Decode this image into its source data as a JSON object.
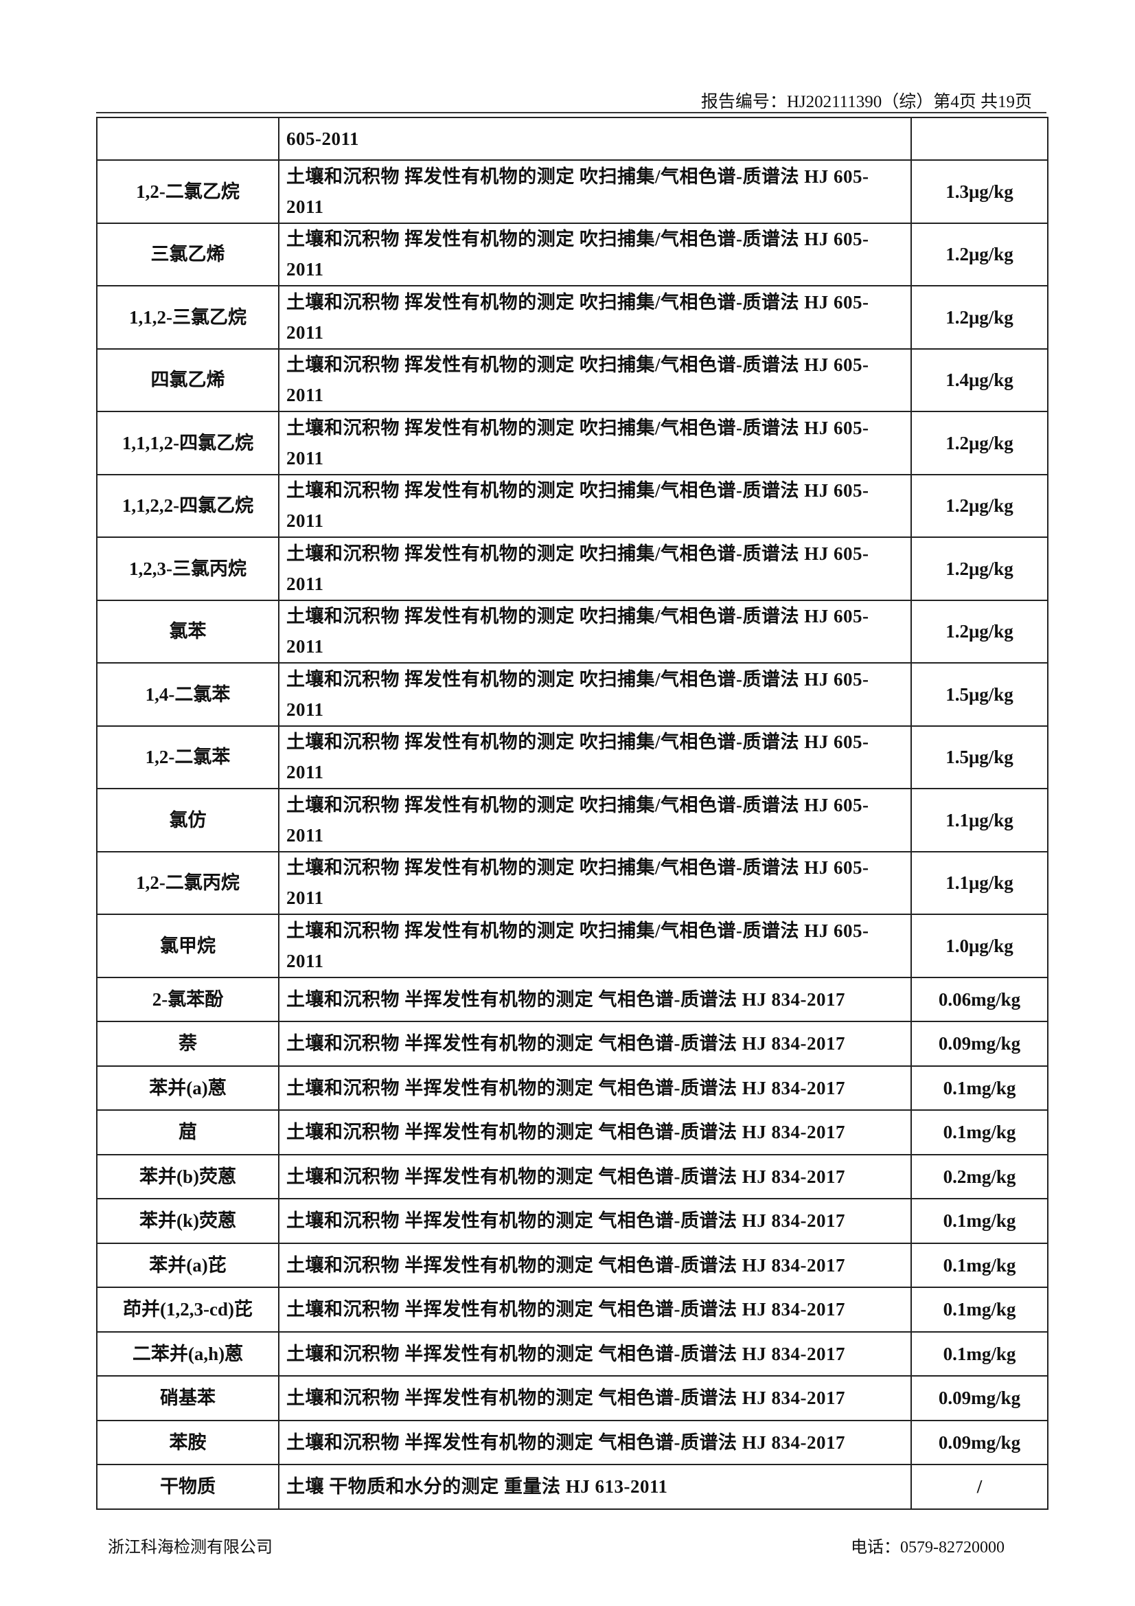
{
  "header": {
    "report_no": "报告编号：HJ202111390（综）第4页 共19页"
  },
  "table": {
    "rows": [
      {
        "method": "605-2011"
      },
      {
        "name": "1,2-二氯乙烷",
        "method": "土壤和沉积物 挥发性有机物的测定 吹扫捕集/气相色谱-质谱法 HJ 605-2011",
        "limit": "1.3μg/kg"
      },
      {
        "name": "三氯乙烯",
        "method": "土壤和沉积物 挥发性有机物的测定 吹扫捕集/气相色谱-质谱法 HJ 605-2011",
        "limit": "1.2μg/kg"
      },
      {
        "name": "1,1,2-三氯乙烷",
        "method": "土壤和沉积物 挥发性有机物的测定 吹扫捕集/气相色谱-质谱法 HJ 605-2011",
        "limit": "1.2μg/kg"
      },
      {
        "name": "四氯乙烯",
        "method": "土壤和沉积物 挥发性有机物的测定 吹扫捕集/气相色谱-质谱法 HJ 605-2011",
        "limit": "1.4μg/kg"
      },
      {
        "name": "1,1,1,2-四氯乙烷",
        "method": "土壤和沉积物 挥发性有机物的测定 吹扫捕集/气相色谱-质谱法 HJ 605-2011",
        "limit": "1.2μg/kg"
      },
      {
        "name": "1,1,2,2-四氯乙烷",
        "method": "土壤和沉积物 挥发性有机物的测定 吹扫捕集/气相色谱-质谱法 HJ 605-2011",
        "limit": "1.2μg/kg"
      },
      {
        "name": "1,2,3-三氯丙烷",
        "method": "土壤和沉积物 挥发性有机物的测定 吹扫捕集/气相色谱-质谱法 HJ 605-2011",
        "limit": "1.2μg/kg"
      },
      {
        "name": "氯苯",
        "method": "土壤和沉积物 挥发性有机物的测定 吹扫捕集/气相色谱-质谱法 HJ 605-2011",
        "limit": "1.2μg/kg"
      },
      {
        "name": "1,4-二氯苯",
        "method": "土壤和沉积物 挥发性有机物的测定 吹扫捕集/气相色谱-质谱法 HJ 605-2011",
        "limit": "1.5μg/kg"
      },
      {
        "name": "1,2-二氯苯",
        "method": "土壤和沉积物 挥发性有机物的测定 吹扫捕集/气相色谱-质谱法 HJ 605-2011",
        "limit": "1.5μg/kg"
      },
      {
        "name": "氯仿",
        "method": "土壤和沉积物 挥发性有机物的测定 吹扫捕集/气相色谱-质谱法 HJ 605-2011",
        "limit": "1.1μg/kg"
      },
      {
        "name": "1,2-二氯丙烷",
        "method": "土壤和沉积物 挥发性有机物的测定 吹扫捕集/气相色谱-质谱法 HJ 605-2011",
        "limit": "1.1μg/kg"
      },
      {
        "name": "氯甲烷",
        "method": "土壤和沉积物 挥发性有机物的测定 吹扫捕集/气相色谱-质谱法 HJ 605-2011",
        "limit": "1.0μg/kg"
      },
      {
        "name": "2-氯苯酚",
        "method": "土壤和沉积物 半挥发性有机物的测定 气相色谱-质谱法 HJ 834-2017",
        "limit": "0.06mg/kg"
      },
      {
        "name": "萘",
        "method": "土壤和沉积物 半挥发性有机物的测定 气相色谱-质谱法 HJ 834-2017",
        "limit": "0.09mg/kg"
      },
      {
        "name": "苯并(a)蒽",
        "method": "土壤和沉积物 半挥发性有机物的测定 气相色谱-质谱法 HJ 834-2017",
        "limit": "0.1mg/kg"
      },
      {
        "name": "䓛",
        "method": "土壤和沉积物 半挥发性有机物的测定 气相色谱-质谱法 HJ 834-2017",
        "limit": "0.1mg/kg"
      },
      {
        "name": "苯并(b)荧蒽",
        "method": "土壤和沉积物 半挥发性有机物的测定 气相色谱-质谱法 HJ 834-2017",
        "limit": "0.2mg/kg"
      },
      {
        "name": "苯并(k)荧蒽",
        "method": "土壤和沉积物 半挥发性有机物的测定 气相色谱-质谱法 HJ 834-2017",
        "limit": "0.1mg/kg"
      },
      {
        "name": "苯并(a)芘",
        "method": "土壤和沉积物 半挥发性有机物的测定 气相色谱-质谱法 HJ 834-2017",
        "limit": "0.1mg/kg"
      },
      {
        "name": "茚并(1,2,3-cd)芘",
        "method": "土壤和沉积物 半挥发性有机物的测定 气相色谱-质谱法 HJ 834-2017",
        "limit": "0.1mg/kg"
      },
      {
        "name": "二苯并(a,h)蒽",
        "method": "土壤和沉积物 半挥发性有机物的测定 气相色谱-质谱法 HJ 834-2017",
        "limit": "0.1mg/kg"
      },
      {
        "name": "硝基苯",
        "method": "土壤和沉积物 半挥发性有机物的测定 气相色谱-质谱法 HJ 834-2017",
        "limit": "0.09mg/kg"
      },
      {
        "name": "苯胺",
        "method": "土壤和沉积物 半挥发性有机物的测定 气相色谱-质谱法 HJ 834-2017",
        "limit": "0.09mg/kg"
      },
      {
        "name": "干物质",
        "method": "土壤 干物质和水分的测定 重量法 HJ 613-2011",
        "limit": "/"
      }
    ]
  },
  "footer": {
    "company": "浙江科海检测有限公司",
    "phone": "电话：0579-82720000"
  }
}
